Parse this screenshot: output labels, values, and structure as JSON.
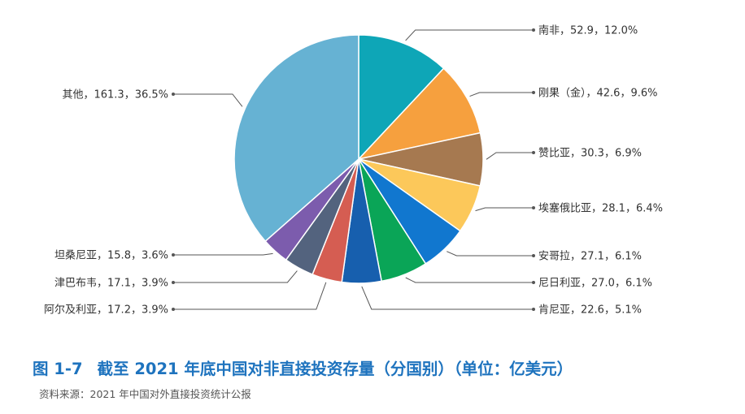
{
  "figure": {
    "number": "图 1-7",
    "title": "截至 2021 年底中国对非直接投资存量（分国别）（单位：亿美元）",
    "source": "资料来源：2021 年中国对外直接投资统计公报"
  },
  "chart_data": {
    "type": "pie",
    "title": "截至 2021 年底中国对非直接投资存量（分国别）（单位：亿美元）",
    "unit": "亿美元",
    "slices": [
      {
        "name": "南非",
        "value": 52.9,
        "percent": 12.0,
        "label": "南非，52.9，12.0%",
        "color": "#0ea6b7"
      },
      {
        "name": "刚果（金）",
        "value": 42.6,
        "percent": 9.6,
        "label": "刚果（金），42.6，9.6%",
        "color": "#f6a03e"
      },
      {
        "name": "赞比亚",
        "value": 30.3,
        "percent": 6.9,
        "label": "赞比亚，30.3，6.9%",
        "color": "#a67950"
      },
      {
        "name": "埃塞俄比亚",
        "value": 28.1,
        "percent": 6.4,
        "label": "埃塞俄比亚，28.1，6.4%",
        "color": "#fcc85a"
      },
      {
        "name": "安哥拉",
        "value": 27.1,
        "percent": 6.1,
        "label": "安哥拉，27.1，6.1%",
        "color": "#1177cf"
      },
      {
        "name": "尼日利亚",
        "value": 27.0,
        "percent": 6.1,
        "label": "尼日利亚，27.0，6.1%",
        "color": "#0aa557"
      },
      {
        "name": "肯尼亚",
        "value": 22.6,
        "percent": 5.1,
        "label": "肯尼亚，22.6，5.1%",
        "color": "#175fae"
      },
      {
        "name": "阿尔及利亚",
        "value": 17.2,
        "percent": 3.9,
        "label": "阿尔及利亚，17.2，3.9%",
        "color": "#d55d52"
      },
      {
        "name": "津巴布韦",
        "value": 17.1,
        "percent": 3.9,
        "label": "津巴布韦，17.1，3.9%",
        "color": "#53637e"
      },
      {
        "name": "坦桑尼亚",
        "value": 15.8,
        "percent": 3.6,
        "label": "坦桑尼亚，15.8，3.6%",
        "color": "#7c5cad"
      },
      {
        "name": "其他",
        "value": 161.3,
        "percent": 36.5,
        "label": "其他，161.3，36.5%",
        "color": "#66b2d3"
      }
    ],
    "legend": "none",
    "labels": "outside with leader lines"
  }
}
